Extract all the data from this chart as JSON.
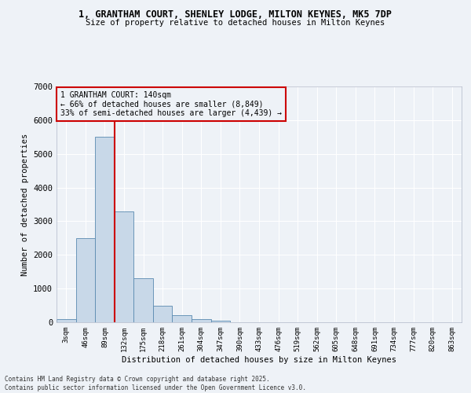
{
  "title_line1": "1, GRANTHAM COURT, SHENLEY LODGE, MILTON KEYNES, MK5 7DP",
  "title_line2": "Size of property relative to detached houses in Milton Keynes",
  "xlabel": "Distribution of detached houses by size in Milton Keynes",
  "ylabel": "Number of detached properties",
  "bar_labels": [
    "3sqm",
    "46sqm",
    "89sqm",
    "132sqm",
    "175sqm",
    "218sqm",
    "261sqm",
    "304sqm",
    "347sqm",
    "390sqm",
    "433sqm",
    "476sqm",
    "519sqm",
    "562sqm",
    "605sqm",
    "648sqm",
    "691sqm",
    "734sqm",
    "777sqm",
    "820sqm",
    "863sqm"
  ],
  "bar_values": [
    100,
    2500,
    5500,
    3300,
    1300,
    500,
    220,
    100,
    50,
    10,
    5,
    0,
    0,
    0,
    0,
    0,
    0,
    0,
    0,
    0,
    0
  ],
  "bar_color": "#c8d8e8",
  "bar_edgecolor": "#5a8ab0",
  "vline_color": "#cc0000",
  "ylim": [
    0,
    7000
  ],
  "annotation_title": "1 GRANTHAM COURT: 140sqm",
  "annotation_line2": "← 66% of detached houses are smaller (8,849)",
  "annotation_line3": "33% of semi-detached houses are larger (4,439) →",
  "annotation_box_color": "#cc0000",
  "footer_line1": "Contains HM Land Registry data © Crown copyright and database right 2025.",
  "footer_line2": "Contains public sector information licensed under the Open Government Licence v3.0.",
  "background_color": "#eef2f7",
  "grid_color": "#ffffff"
}
